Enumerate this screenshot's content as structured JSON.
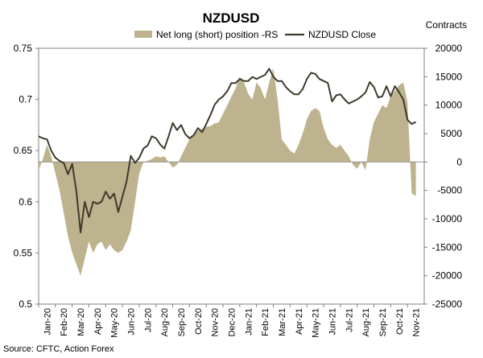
{
  "chart_data": {
    "type": "area+line",
    "title": "NZDUSD",
    "y_right_label": "Contracts",
    "source": "Source: CFTC, Action Forex",
    "colors": {
      "area": "#bdb38e",
      "line": "#3e3a2c",
      "axis": "#808080"
    },
    "legend": {
      "placement": "top-center",
      "entries": [
        {
          "name": "Net long (short) position -RS",
          "type": "area"
        },
        {
          "name": "NZDUSD Close",
          "type": "line"
        }
      ]
    },
    "y_left": {
      "min": 0.5,
      "max": 0.75,
      "ticks": [
        0.75,
        0.7,
        0.65,
        0.6,
        0.55,
        0.5
      ],
      "tick_labels": [
        "0.75",
        "0.7",
        "0.65",
        "0.6",
        "0.55",
        "0.5"
      ]
    },
    "y_right": {
      "min": -25000,
      "max": 20000,
      "ticks": [
        20000,
        15000,
        10000,
        5000,
        0,
        -5000,
        -10000,
        -15000,
        -20000,
        -25000
      ],
      "tick_labels": [
        "20000",
        "15000",
        "10000",
        "5000",
        "0",
        "-5000",
        "-10000",
        "-15000",
        "-20000",
        "-25000"
      ]
    },
    "x": {
      "start": "2020-01-01",
      "end": "2021-12-01",
      "tick_labels": [
        "Jan-20",
        "Feb-20",
        "Mar-20",
        "Apr-20",
        "May-20",
        "Jun-20",
        "Jul-20",
        "Aug-20",
        "Sep-20",
        "Oct-20",
        "Nov-20",
        "Dec-20",
        "Jan-21",
        "Feb-21",
        "Mar-21",
        "Apr-21",
        "May-21",
        "Jun-21",
        "Jul-21",
        "Aug-21",
        "Sep-21",
        "Oct-21",
        "Nov-21"
      ]
    },
    "series": [
      {
        "name": "Net long (short) position -RS",
        "type": "area",
        "axis": "right",
        "points": [
          [
            0.0,
            -1500
          ],
          [
            0.25,
            500
          ],
          [
            0.5,
            3000
          ],
          [
            0.75,
            1000
          ],
          [
            1.0,
            -2000
          ],
          [
            1.25,
            -5000
          ],
          [
            1.5,
            -9000
          ],
          [
            1.75,
            -13000
          ],
          [
            2.0,
            -16000
          ],
          [
            2.25,
            -18000
          ],
          [
            2.5,
            -20000
          ],
          [
            2.75,
            -17000
          ],
          [
            3.0,
            -14000
          ],
          [
            3.25,
            -16000
          ],
          [
            3.5,
            -14500
          ],
          [
            3.75,
            -14000
          ],
          [
            4.0,
            -15500
          ],
          [
            4.25,
            -14500
          ],
          [
            4.5,
            -15500
          ],
          [
            4.75,
            -16000
          ],
          [
            5.0,
            -15500
          ],
          [
            5.25,
            -14000
          ],
          [
            5.5,
            -12000
          ],
          [
            5.75,
            -7000
          ],
          [
            6.0,
            -2000
          ],
          [
            6.25,
            0
          ],
          [
            6.5,
            200
          ],
          [
            6.75,
            500
          ],
          [
            7.0,
            1000
          ],
          [
            7.25,
            800
          ],
          [
            7.5,
            1000
          ],
          [
            7.75,
            0
          ],
          [
            8.0,
            -1000
          ],
          [
            8.25,
            -500
          ],
          [
            8.5,
            1000
          ],
          [
            8.75,
            2500
          ],
          [
            9.0,
            4000
          ],
          [
            9.25,
            5000
          ],
          [
            9.5,
            5500
          ],
          [
            9.75,
            5800
          ],
          [
            10.0,
            6200
          ],
          [
            10.25,
            6300
          ],
          [
            10.5,
            6800
          ],
          [
            10.75,
            7000
          ],
          [
            11.0,
            8500
          ],
          [
            11.25,
            10000
          ],
          [
            11.5,
            11500
          ],
          [
            11.75,
            13000
          ],
          [
            12.0,
            15000
          ],
          [
            12.25,
            14000
          ],
          [
            12.5,
            12000
          ],
          [
            12.75,
            11000
          ],
          [
            13.0,
            14000
          ],
          [
            13.25,
            13000
          ],
          [
            13.5,
            11000
          ],
          [
            13.75,
            14000
          ],
          [
            14.0,
            16500
          ],
          [
            14.25,
            11000
          ],
          [
            14.5,
            4000
          ],
          [
            14.75,
            3000
          ],
          [
            15.0,
            2000
          ],
          [
            15.25,
            1500
          ],
          [
            15.5,
            3000
          ],
          [
            15.75,
            5000
          ],
          [
            16.0,
            7500
          ],
          [
            16.25,
            9000
          ],
          [
            16.5,
            9500
          ],
          [
            16.75,
            9000
          ],
          [
            17.0,
            6000
          ],
          [
            17.25,
            4000
          ],
          [
            17.5,
            3000
          ],
          [
            17.75,
            2500
          ],
          [
            18.0,
            3000
          ],
          [
            18.25,
            2000
          ],
          [
            18.5,
            1000
          ],
          [
            18.75,
            -500
          ],
          [
            19.0,
            -1200
          ],
          [
            19.25,
            0
          ],
          [
            19.5,
            -1500
          ],
          [
            19.75,
            4000
          ],
          [
            20.0,
            7000
          ],
          [
            20.25,
            8500
          ],
          [
            20.5,
            10000
          ],
          [
            20.75,
            9500
          ],
          [
            21.0,
            11500
          ],
          [
            21.25,
            12500
          ],
          [
            21.5,
            13500
          ],
          [
            21.75,
            14000
          ],
          [
            22.0,
            10500
          ],
          [
            22.25,
            -5500
          ],
          [
            22.5,
            -6000
          ]
        ]
      },
      {
        "name": "NZDUSD Close",
        "type": "line",
        "axis": "left",
        "points": [
          [
            0.0,
            0.664
          ],
          [
            0.25,
            0.662
          ],
          [
            0.5,
            0.661
          ],
          [
            0.75,
            0.65
          ],
          [
            1.0,
            0.643
          ],
          [
            1.25,
            0.64
          ],
          [
            1.5,
            0.638
          ],
          [
            1.75,
            0.627
          ],
          [
            2.0,
            0.637
          ],
          [
            2.25,
            0.61
          ],
          [
            2.5,
            0.57
          ],
          [
            2.75,
            0.6
          ],
          [
            3.0,
            0.585
          ],
          [
            3.25,
            0.6
          ],
          [
            3.5,
            0.598
          ],
          [
            3.75,
            0.6
          ],
          [
            4.0,
            0.61
          ],
          [
            4.25,
            0.603
          ],
          [
            4.5,
            0.608
          ],
          [
            4.75,
            0.59
          ],
          [
            5.0,
            0.605
          ],
          [
            5.25,
            0.62
          ],
          [
            5.5,
            0.645
          ],
          [
            5.75,
            0.638
          ],
          [
            6.0,
            0.643
          ],
          [
            6.25,
            0.652
          ],
          [
            6.5,
            0.655
          ],
          [
            6.75,
            0.664
          ],
          [
            7.0,
            0.662
          ],
          [
            7.25,
            0.656
          ],
          [
            7.5,
            0.652
          ],
          [
            7.75,
            0.664
          ],
          [
            8.0,
            0.677
          ],
          [
            8.25,
            0.67
          ],
          [
            8.5,
            0.675
          ],
          [
            8.75,
            0.666
          ],
          [
            9.0,
            0.662
          ],
          [
            9.25,
            0.665
          ],
          [
            9.5,
            0.672
          ],
          [
            9.75,
            0.668
          ],
          [
            10.0,
            0.676
          ],
          [
            10.25,
            0.685
          ],
          [
            10.5,
            0.695
          ],
          [
            10.75,
            0.7
          ],
          [
            11.0,
            0.703
          ],
          [
            11.25,
            0.708
          ],
          [
            11.5,
            0.716
          ],
          [
            11.75,
            0.716
          ],
          [
            12.0,
            0.72
          ],
          [
            12.25,
            0.718
          ],
          [
            12.5,
            0.718
          ],
          [
            12.75,
            0.722
          ],
          [
            13.0,
            0.72
          ],
          [
            13.25,
            0.722
          ],
          [
            13.5,
            0.724
          ],
          [
            13.75,
            0.73
          ],
          [
            14.0,
            0.722
          ],
          [
            14.25,
            0.718
          ],
          [
            14.5,
            0.718
          ],
          [
            14.75,
            0.712
          ],
          [
            15.0,
            0.708
          ],
          [
            15.25,
            0.705
          ],
          [
            15.5,
            0.705
          ],
          [
            15.75,
            0.71
          ],
          [
            16.0,
            0.72
          ],
          [
            16.25,
            0.726
          ],
          [
            16.5,
            0.725
          ],
          [
            16.75,
            0.72
          ],
          [
            17.0,
            0.718
          ],
          [
            17.25,
            0.716
          ],
          [
            17.5,
            0.698
          ],
          [
            17.75,
            0.704
          ],
          [
            18.0,
            0.705
          ],
          [
            18.25,
            0.7
          ],
          [
            18.5,
            0.696
          ],
          [
            18.75,
            0.698
          ],
          [
            19.0,
            0.7
          ],
          [
            19.25,
            0.703
          ],
          [
            19.5,
            0.707
          ],
          [
            19.75,
            0.717
          ],
          [
            20.0,
            0.712
          ],
          [
            20.25,
            0.702
          ],
          [
            20.5,
            0.703
          ],
          [
            20.75,
            0.713
          ],
          [
            21.0,
            0.703
          ],
          [
            21.25,
            0.713
          ],
          [
            21.5,
            0.707
          ],
          [
            21.75,
            0.7
          ],
          [
            22.0,
            0.68
          ],
          [
            22.25,
            0.676
          ],
          [
            22.5,
            0.678
          ]
        ]
      }
    ]
  }
}
